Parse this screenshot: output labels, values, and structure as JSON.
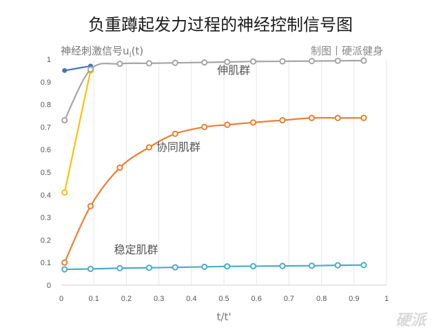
{
  "chart_data": {
    "type": "line",
    "title": "负重蹲起发力过程的神经控制信号图",
    "ylabel": "神经刺激信号u",
    "ylabel_sub": "i",
    "ylabel_suffix": "(t)",
    "xlabel": "t/t'",
    "credit": "制图丨硬派健身",
    "watermark": "硬派",
    "xlim": [
      0,
      1
    ],
    "ylim": [
      0,
      1
    ],
    "xticks": [
      "0",
      "0.1",
      "0.2",
      "0.3",
      "0.4",
      "0.5",
      "0.6",
      "0.7",
      "0.8",
      "0.9",
      "1"
    ],
    "yticks": [
      "0",
      "0.1",
      "0.2",
      "0.3",
      "0.4",
      "0.5",
      "0.6",
      "0.7",
      "0.8",
      "0.9",
      "1"
    ],
    "grid": "vertical",
    "series": [
      {
        "name": "伸肌群",
        "color": "#4472c4",
        "marker": "filled",
        "points": [
          [
            0.01,
            0.95
          ],
          [
            0.09,
            0.97
          ]
        ]
      },
      {
        "name": "",
        "color": "#ffc000",
        "marker": "open",
        "points": [
          [
            0.01,
            0.41
          ],
          [
            0.09,
            0.95
          ]
        ]
      },
      {
        "name": "伸肌群",
        "color": "#a5a5a5",
        "marker": "open",
        "points": [
          [
            0.01,
            0.73
          ],
          [
            0.09,
            0.955
          ],
          [
            0.18,
            0.98
          ],
          [
            0.27,
            0.982
          ],
          [
            0.35,
            0.984
          ],
          [
            0.44,
            0.986
          ],
          [
            0.51,
            0.988
          ],
          [
            0.59,
            0.99
          ],
          [
            0.68,
            0.991
          ],
          [
            0.77,
            0.992
          ],
          [
            0.85,
            0.993
          ],
          [
            0.93,
            0.994
          ]
        ]
      },
      {
        "name": "协同肌群",
        "color": "#ed7d31",
        "marker": "open",
        "points": [
          [
            0.01,
            0.1
          ],
          [
            0.09,
            0.35
          ],
          [
            0.18,
            0.52
          ],
          [
            0.27,
            0.61
          ],
          [
            0.35,
            0.67
          ],
          [
            0.44,
            0.7
          ],
          [
            0.51,
            0.71
          ],
          [
            0.59,
            0.72
          ],
          [
            0.68,
            0.73
          ],
          [
            0.77,
            0.74
          ],
          [
            0.85,
            0.74
          ],
          [
            0.93,
            0.74
          ]
        ]
      },
      {
        "name": "稳定肌群",
        "color": "#4bacc6",
        "marker": "open",
        "points": [
          [
            0.01,
            0.07
          ],
          [
            0.09,
            0.072
          ],
          [
            0.18,
            0.075
          ],
          [
            0.27,
            0.077
          ],
          [
            0.35,
            0.079
          ],
          [
            0.44,
            0.081
          ],
          [
            0.51,
            0.083
          ],
          [
            0.59,
            0.084
          ],
          [
            0.68,
            0.085
          ],
          [
            0.77,
            0.086
          ],
          [
            0.85,
            0.088
          ],
          [
            0.93,
            0.089
          ]
        ]
      }
    ],
    "annotations": [
      {
        "text": "伸肌群",
        "x": 0.53,
        "y": 0.935
      },
      {
        "text": "协同肌群",
        "x": 0.36,
        "y": 0.595
      },
      {
        "text": "稳定肌群",
        "x": 0.23,
        "y": 0.14
      }
    ]
  }
}
